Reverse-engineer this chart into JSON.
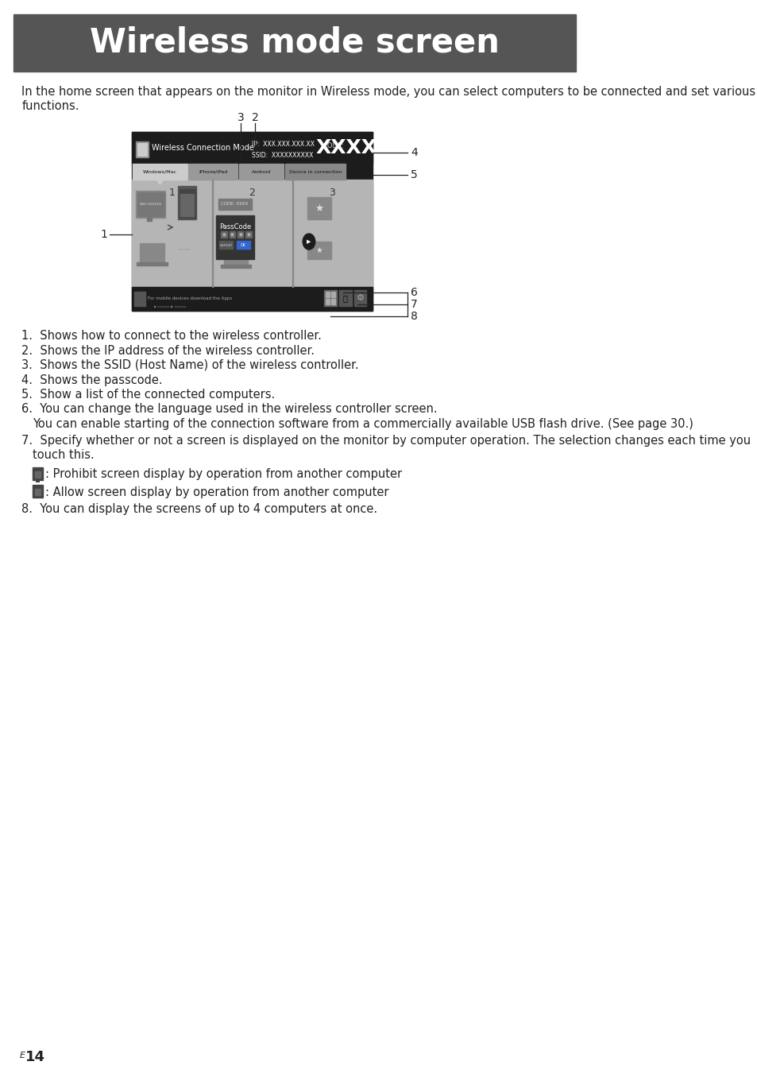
{
  "title": "Wireless mode screen",
  "title_bg": "#555555",
  "title_color": "#ffffff",
  "title_fontsize": 30,
  "body_text_line1": "In the home screen that appears on the monitor in Wireless mode, you can select computers to be connected and set various",
  "body_text_line2": "functions.",
  "body_fontsize": 10.5,
  "body_color": "#222222",
  "page_bg": "#ffffff",
  "list_items": [
    "Shows how to connect to the wireless controller.",
    "Shows the IP address of the wireless controller.",
    "Shows the SSID (Host Name) of the wireless controller.",
    "Shows the passcode.",
    "Show a list of the connected computers.",
    "You can change the language used in the wireless controller screen.",
    "You can enable starting of the connection software from a commercially available USB flash drive. (See page 30.)",
    "Specify whether or not a screen is displayed on the monitor by computer operation. The selection changes each time you",
    "touch this.",
    "You can display the screens of up to 4 computers at once."
  ],
  "lock_items": [
    ": Prohibit screen display by operation from another computer",
    ": Allow screen display by operation from another computer"
  ],
  "footer_text": "14",
  "footer_prefix": "E"
}
